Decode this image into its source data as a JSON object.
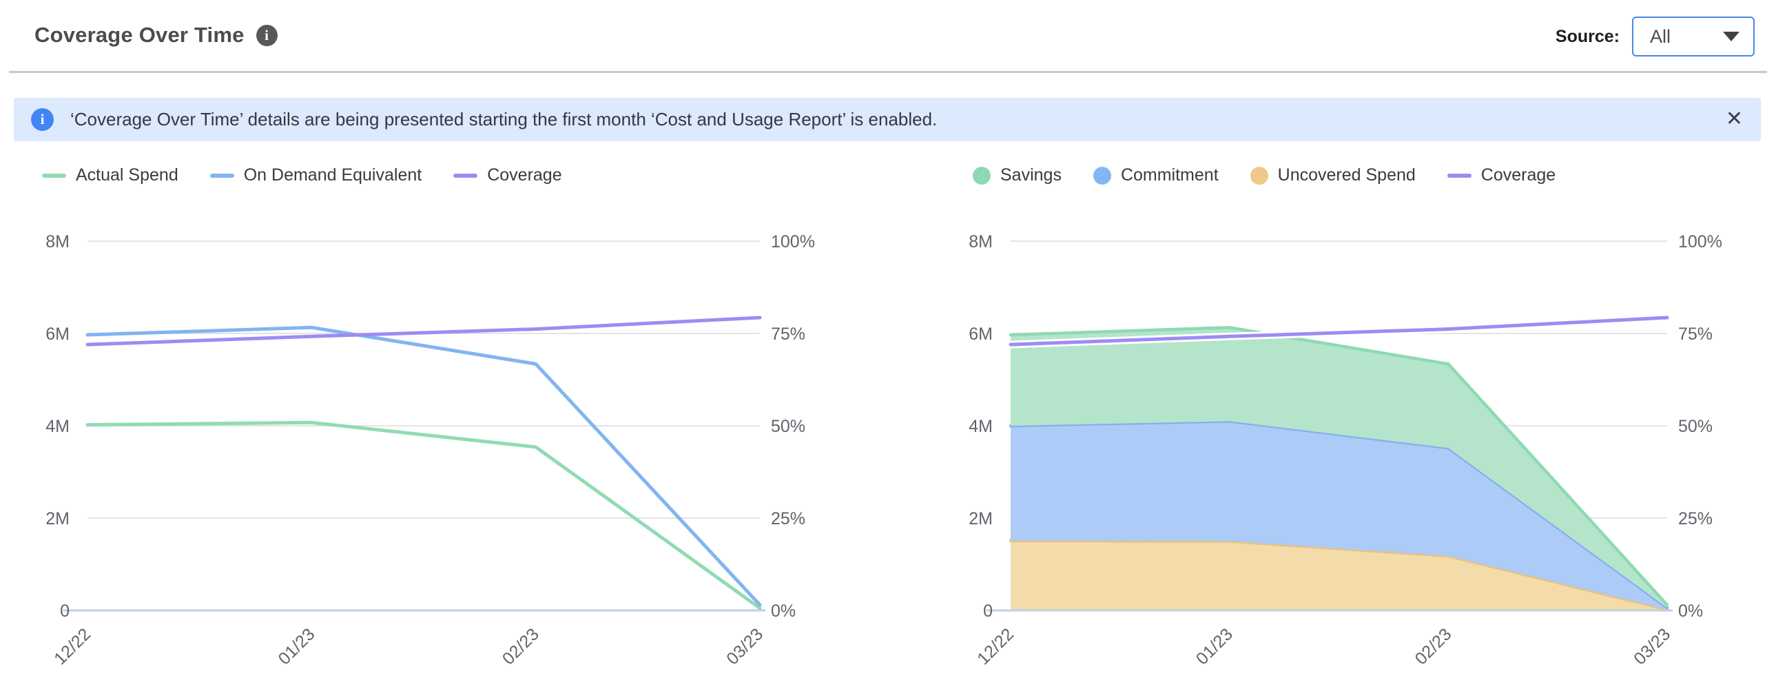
{
  "header": {
    "title": "Coverage Over Time",
    "info_icon": "info-icon",
    "source_label": "Source:",
    "source_value": "All"
  },
  "banner": {
    "message": "‘Coverage Over Time’ details are being presented starting the first month ‘Cost and Usage Report’ is enabled.",
    "close_label": "✕"
  },
  "colors": {
    "accent_blue": "#4c86ec",
    "banner_bg": "#dde9fc",
    "banner_icon": "#4285f4",
    "grid_line": "#e4e4e6",
    "axis_line": "#c3cde7",
    "tick_text": "#60646b"
  },
  "chart_data": [
    {
      "type": "line",
      "title": "Spend vs Coverage (lines)",
      "x": [
        "12/22",
        "01/23",
        "02/23",
        "03/23"
      ],
      "series": [
        {
          "name": "Actual Spend",
          "axis": "left",
          "color": "#90dbb3",
          "values_M": [
            4.02,
            4.07,
            3.54,
            0.05
          ]
        },
        {
          "name": "On Demand Equivalent",
          "axis": "left",
          "color": "#82b4f0",
          "values_M": [
            5.97,
            6.13,
            5.34,
            0.12
          ]
        },
        {
          "name": "Coverage",
          "axis": "right",
          "color": "#9d8cf2",
          "values_pct": [
            72,
            74.2,
            76.2,
            79.3
          ]
        }
      ],
      "legend": [
        {
          "label": "Actual Spend",
          "swatch": "line",
          "color": "#90dbb3"
        },
        {
          "label": "On Demand Equivalent",
          "swatch": "line",
          "color": "#82b4f0"
        },
        {
          "label": "Coverage",
          "swatch": "line",
          "color": "#9d8cf2"
        }
      ],
      "y_left": {
        "ticks": [
          "0",
          "2M",
          "4M",
          "6M",
          "8M"
        ],
        "range_M": [
          0,
          8
        ]
      },
      "y_right": {
        "ticks": [
          "0%",
          "25%",
          "50%",
          "75%",
          "100%"
        ],
        "range_pct": [
          0,
          100
        ]
      },
      "grid": true,
      "legend_position": "top-left"
    },
    {
      "type": "area",
      "stacked": true,
      "title": "Spend breakdown vs Coverage (stacked areas)",
      "x": [
        "12/22",
        "01/23",
        "02/23",
        "03/23"
      ],
      "series": [
        {
          "name": "Uncovered Spend",
          "kind": "area",
          "color_fill": "#f3dcaa",
          "color_edge": "#ecc17d",
          "values_M": [
            1.51,
            1.5,
            1.18,
            0.02
          ]
        },
        {
          "name": "Commitment",
          "kind": "area",
          "color_fill": "#accbf6",
          "color_edge": "#84aff0",
          "values_M": [
            2.49,
            2.6,
            2.34,
            0.04
          ]
        },
        {
          "name": "Savings",
          "kind": "area",
          "color_fill": "#b4e5ca",
          "color_edge": "#8fd9b4",
          "values_M": [
            1.97,
            2.03,
            1.82,
            0.06
          ]
        },
        {
          "name": "Coverage",
          "kind": "line",
          "axis": "right",
          "color": "#9d8cf2",
          "halo": "#ffffff",
          "values_pct": [
            72,
            74.2,
            76.2,
            79.3
          ]
        }
      ],
      "legend": [
        {
          "label": "Savings",
          "swatch": "dot",
          "color": "#8fd9b2"
        },
        {
          "label": "Commitment",
          "swatch": "dot",
          "color": "#84b7f2"
        },
        {
          "label": "Uncovered Spend",
          "swatch": "dot",
          "color": "#eec88c"
        },
        {
          "label": "Coverage",
          "swatch": "line",
          "color": "#9d8cf2"
        }
      ],
      "y_left": {
        "ticks": [
          "0",
          "2M",
          "4M",
          "6M",
          "8M"
        ],
        "range_M": [
          0,
          8
        ]
      },
      "y_right": {
        "ticks": [
          "0%",
          "25%",
          "50%",
          "75%",
          "100%"
        ],
        "range_pct": [
          0,
          100
        ]
      },
      "grid": true,
      "legend_position": "top-left"
    }
  ]
}
